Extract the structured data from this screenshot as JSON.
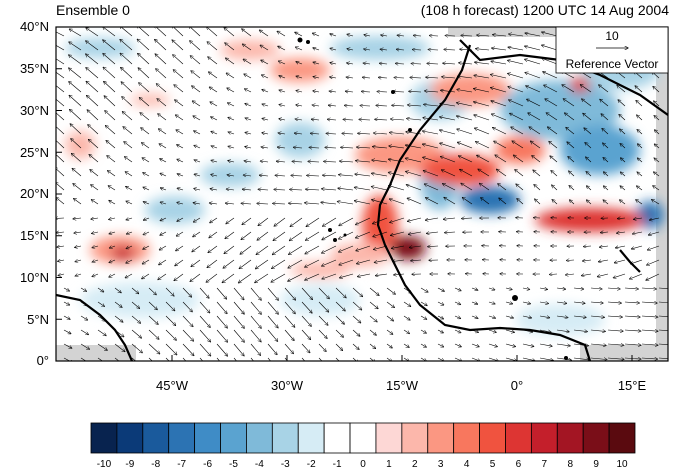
{
  "header": {
    "left_title": "Ensemble 0",
    "right_title": "(108 h forecast) 1200 UTC 14 Aug 2004"
  },
  "reference_vector": {
    "magnitude_label": "10",
    "label": "Reference Vector"
  },
  "y_axis": {
    "ticks": [
      "40°N",
      "35°N",
      "30°N",
      "25°N",
      "20°N",
      "15°N",
      "10°N",
      "5°N",
      "0°"
    ]
  },
  "x_axis": {
    "ticks": [
      "45°W",
      "30°W",
      "15°W",
      "0°",
      "15°E"
    ]
  },
  "colorbar": {
    "labels": [
      "-10",
      "-9",
      "-8",
      "-7",
      "-6",
      "-5",
      "-4",
      "-3",
      "-2",
      "-1",
      "0",
      "1",
      "2",
      "3",
      "4",
      "5",
      "6",
      "7",
      "8",
      "9",
      "10"
    ],
    "colors": [
      "#08234f",
      "#0b3a78",
      "#1a5a9c",
      "#2c73b3",
      "#3f8cc6",
      "#5aa3d0",
      "#7fbad9",
      "#a8d3e6",
      "#d6ecf5",
      "#ffffff",
      "#ffffff",
      "#fdd7d5",
      "#fcb7ab",
      "#fb9782",
      "#f8775e",
      "#f0533f",
      "#dd3533",
      "#c41f2b",
      "#a31523",
      "#7a0e18",
      "#5a0a0f"
    ]
  },
  "map": {
    "lat_range": [
      0,
      40
    ],
    "lon_range": [
      -60,
      20
    ],
    "land_fill": "#d3d3d3"
  }
}
